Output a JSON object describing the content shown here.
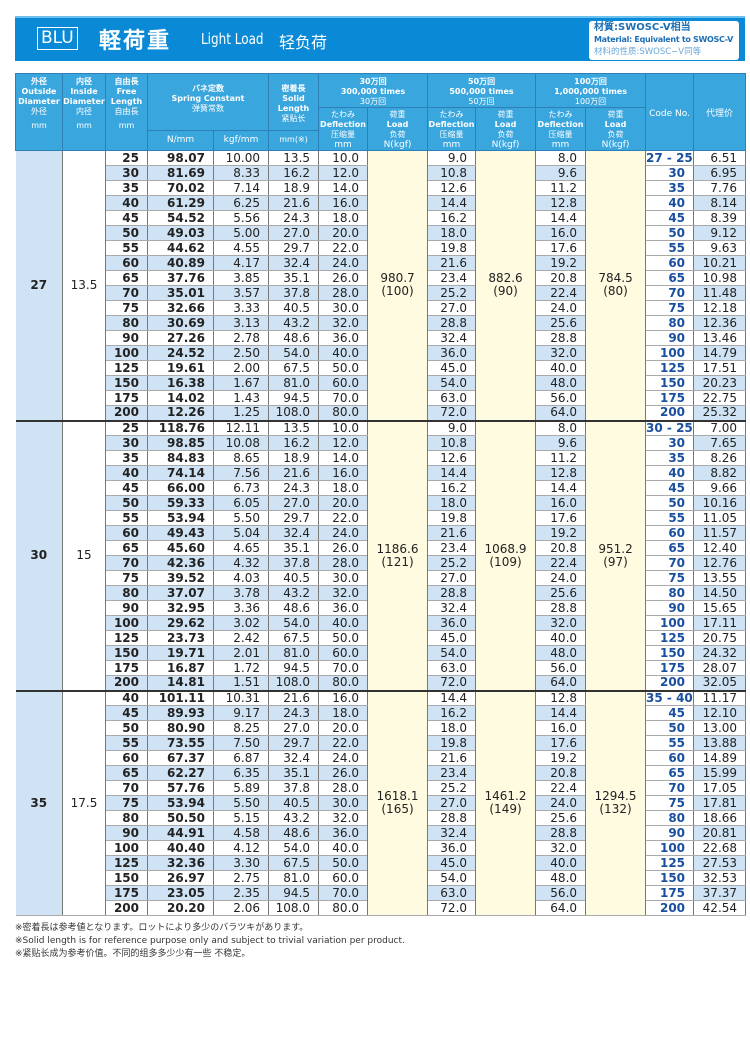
{
  "header": {
    "series": "BLU",
    "title_jp": "軽荷重",
    "title_en": "Light Load",
    "title_cn": "轻负荷",
    "material_jp": "材質:SWOSC-V相当",
    "material_en": "Material: Equivalent to SWOSC-V",
    "material_cn": "材料的性质:SWOSC−V同等"
  },
  "columns": {
    "outside": {
      "jp": "外径",
      "en": "Outside Diameter",
      "cn": "外径",
      "unit": "mm"
    },
    "inside": {
      "jp": "内径",
      "en": "Inside Diameter",
      "cn": "内径",
      "unit": "mm"
    },
    "free": {
      "jp": "自由長",
      "en": "Free Length",
      "cn": "自由長",
      "unit": "mm"
    },
    "spring": {
      "jp": "バネ定数",
      "en": "Spring Constant",
      "cn": "弹簧常数",
      "unit_n": "N/mm",
      "unit_kgf": "kgf/mm"
    },
    "solid": {
      "jp": "密着長",
      "en": "Solid Length",
      "cn": "紧贴长",
      "unit": "mm(※)"
    },
    "life": [
      {
        "jp": "30万回",
        "en": "300,000 times",
        "cn": "30万回"
      },
      {
        "jp": "50万回",
        "en": "500,000 times",
        "cn": "50万回"
      },
      {
        "jp": "100万回",
        "en": "1,000,000 times",
        "cn": "100万回"
      }
    ],
    "deflection": {
      "jp": "たわみ",
      "en": "Deflection",
      "cn": "压缩量",
      "unit": "mm"
    },
    "load": {
      "jp": "荷重",
      "en": "Load",
      "cn": "负荷",
      "unit": "N(kgf)"
    },
    "code": "Code No.",
    "price": "代理价"
  },
  "groups": [
    {
      "outside": "27",
      "inside": "13.5",
      "loads": [
        [
          "980.7",
          "(100)"
        ],
        [
          "882.6",
          "(90)"
        ],
        [
          "784.5",
          "(80)"
        ]
      ],
      "rows": [
        [
          "25",
          "98.07",
          "10.00",
          "13.5",
          "10.0",
          "9.0",
          "8.0",
          "27 - 25",
          "6.51"
        ],
        [
          "30",
          "81.69",
          "8.33",
          "16.2",
          "12.0",
          "10.8",
          "9.6",
          "30",
          "6.95"
        ],
        [
          "35",
          "70.02",
          "7.14",
          "18.9",
          "14.0",
          "12.6",
          "11.2",
          "35",
          "7.76"
        ],
        [
          "40",
          "61.29",
          "6.25",
          "21.6",
          "16.0",
          "14.4",
          "12.8",
          "40",
          "8.14"
        ],
        [
          "45",
          "54.52",
          "5.56",
          "24.3",
          "18.0",
          "16.2",
          "14.4",
          "45",
          "8.39"
        ],
        [
          "50",
          "49.03",
          "5.00",
          "27.0",
          "20.0",
          "18.0",
          "16.0",
          "50",
          "9.12"
        ],
        [
          "55",
          "44.62",
          "4.55",
          "29.7",
          "22.0",
          "19.8",
          "17.6",
          "55",
          "9.63"
        ],
        [
          "60",
          "40.89",
          "4.17",
          "32.4",
          "24.0",
          "21.6",
          "19.2",
          "60",
          "10.21"
        ],
        [
          "65",
          "37.76",
          "3.85",
          "35.1",
          "26.0",
          "23.4",
          "20.8",
          "65",
          "10.98"
        ],
        [
          "70",
          "35.01",
          "3.57",
          "37.8",
          "28.0",
          "25.2",
          "22.4",
          "70",
          "11.48"
        ],
        [
          "75",
          "32.66",
          "3.33",
          "40.5",
          "30.0",
          "27.0",
          "24.0",
          "75",
          "12.18"
        ],
        [
          "80",
          "30.69",
          "3.13",
          "43.2",
          "32.0",
          "28.8",
          "25.6",
          "80",
          "12.36"
        ],
        [
          "90",
          "27.26",
          "2.78",
          "48.6",
          "36.0",
          "32.4",
          "28.8",
          "90",
          "13.46"
        ],
        [
          "100",
          "24.52",
          "2.50",
          "54.0",
          "40.0",
          "36.0",
          "32.0",
          "100",
          "14.79"
        ],
        [
          "125",
          "19.61",
          "2.00",
          "67.5",
          "50.0",
          "45.0",
          "40.0",
          "125",
          "17.51"
        ],
        [
          "150",
          "16.38",
          "1.67",
          "81.0",
          "60.0",
          "54.0",
          "48.0",
          "150",
          "20.23"
        ],
        [
          "175",
          "14.02",
          "1.43",
          "94.5",
          "70.0",
          "63.0",
          "56.0",
          "175",
          "22.75"
        ],
        [
          "200",
          "12.26",
          "1.25",
          "108.0",
          "80.0",
          "72.0",
          "64.0",
          "200",
          "25.32"
        ]
      ]
    },
    {
      "outside": "30",
      "inside": "15",
      "loads": [
        [
          "1186.6",
          "(121)"
        ],
        [
          "1068.9",
          "(109)"
        ],
        [
          "951.2",
          "(97)"
        ]
      ],
      "rows": [
        [
          "25",
          "118.76",
          "12.11",
          "13.5",
          "10.0",
          "9.0",
          "8.0",
          "30 - 25",
          "7.00"
        ],
        [
          "30",
          "98.85",
          "10.08",
          "16.2",
          "12.0",
          "10.8",
          "9.6",
          "30",
          "7.65"
        ],
        [
          "35",
          "84.83",
          "8.65",
          "18.9",
          "14.0",
          "12.6",
          "11.2",
          "35",
          "8.26"
        ],
        [
          "40",
          "74.14",
          "7.56",
          "21.6",
          "16.0",
          "14.4",
          "12.8",
          "40",
          "8.82"
        ],
        [
          "45",
          "66.00",
          "6.73",
          "24.3",
          "18.0",
          "16.2",
          "14.4",
          "45",
          "9.66"
        ],
        [
          "50",
          "59.33",
          "6.05",
          "27.0",
          "20.0",
          "18.0",
          "16.0",
          "50",
          "10.16"
        ],
        [
          "55",
          "53.94",
          "5.50",
          "29.7",
          "22.0",
          "19.8",
          "17.6",
          "55",
          "11.05"
        ],
        [
          "60",
          "49.43",
          "5.04",
          "32.4",
          "24.0",
          "21.6",
          "19.2",
          "60",
          "11.57"
        ],
        [
          "65",
          "45.60",
          "4.65",
          "35.1",
          "26.0",
          "23.4",
          "20.8",
          "65",
          "12.40"
        ],
        [
          "70",
          "42.36",
          "4.32",
          "37.8",
          "28.0",
          "25.2",
          "22.4",
          "70",
          "12.76"
        ],
        [
          "75",
          "39.52",
          "4.03",
          "40.5",
          "30.0",
          "27.0",
          "24.0",
          "75",
          "13.55"
        ],
        [
          "80",
          "37.07",
          "3.78",
          "43.2",
          "32.0",
          "28.8",
          "25.6",
          "80",
          "14.50"
        ],
        [
          "90",
          "32.95",
          "3.36",
          "48.6",
          "36.0",
          "32.4",
          "28.8",
          "90",
          "15.65"
        ],
        [
          "100",
          "29.62",
          "3.02",
          "54.0",
          "40.0",
          "36.0",
          "32.0",
          "100",
          "17.11"
        ],
        [
          "125",
          "23.73",
          "2.42",
          "67.5",
          "50.0",
          "45.0",
          "40.0",
          "125",
          "20.75"
        ],
        [
          "150",
          "19.71",
          "2.01",
          "81.0",
          "60.0",
          "54.0",
          "48.0",
          "150",
          "24.32"
        ],
        [
          "175",
          "16.87",
          "1.72",
          "94.5",
          "70.0",
          "63.0",
          "56.0",
          "175",
          "28.07"
        ],
        [
          "200",
          "14.81",
          "1.51",
          "108.0",
          "80.0",
          "72.0",
          "64.0",
          "200",
          "32.05"
        ]
      ]
    },
    {
      "outside": "35",
      "inside": "17.5",
      "loads": [
        [
          "1618.1",
          "(165)"
        ],
        [
          "1461.2",
          "(149)"
        ],
        [
          "1294.5",
          "(132)"
        ]
      ],
      "rows": [
        [
          "40",
          "101.11",
          "10.31",
          "21.6",
          "16.0",
          "14.4",
          "12.8",
          "35 - 40",
          "11.17"
        ],
        [
          "45",
          "89.93",
          "9.17",
          "24.3",
          "18.0",
          "16.2",
          "14.4",
          "45",
          "12.10"
        ],
        [
          "50",
          "80.90",
          "8.25",
          "27.0",
          "20.0",
          "18.0",
          "16.0",
          "50",
          "13.00"
        ],
        [
          "55",
          "73.55",
          "7.50",
          "29.7",
          "22.0",
          "19.8",
          "17.6",
          "55",
          "13.88"
        ],
        [
          "60",
          "67.37",
          "6.87",
          "32.4",
          "24.0",
          "21.6",
          "19.2",
          "60",
          "14.89"
        ],
        [
          "65",
          "62.27",
          "6.35",
          "35.1",
          "26.0",
          "23.4",
          "20.8",
          "65",
          "15.99"
        ],
        [
          "70",
          "57.76",
          "5.89",
          "37.8",
          "28.0",
          "25.2",
          "22.4",
          "70",
          "17.05"
        ],
        [
          "75",
          "53.94",
          "5.50",
          "40.5",
          "30.0",
          "27.0",
          "24.0",
          "75",
          "17.81"
        ],
        [
          "80",
          "50.50",
          "5.15",
          "43.2",
          "32.0",
          "28.8",
          "25.6",
          "80",
          "18.66"
        ],
        [
          "90",
          "44.91",
          "4.58",
          "48.6",
          "36.0",
          "32.4",
          "28.8",
          "90",
          "20.81"
        ],
        [
          "100",
          "40.40",
          "4.12",
          "54.0",
          "40.0",
          "36.0",
          "32.0",
          "100",
          "22.68"
        ],
        [
          "125",
          "32.36",
          "3.30",
          "67.5",
          "50.0",
          "45.0",
          "40.0",
          "125",
          "27.53"
        ],
        [
          "150",
          "26.97",
          "2.75",
          "81.0",
          "60.0",
          "54.0",
          "48.0",
          "150",
          "32.53"
        ],
        [
          "175",
          "23.05",
          "2.35",
          "94.5",
          "70.0",
          "63.0",
          "56.0",
          "175",
          "37.37"
        ],
        [
          "200",
          "20.20",
          "2.06",
          "108.0",
          "80.0",
          "72.0",
          "64.0",
          "200",
          "42.54"
        ]
      ]
    }
  ],
  "footnotes": [
    "※密着長は参考値となります。ロットにより多少のバラツキがあります。",
    "※Solid length is for reference purpose only and subject to trivial variation per product.",
    "※紧贴长成为参考价值。不同的组多多少少有一些 不稳定。"
  ],
  "colors": {
    "brand": "#0a8ad6",
    "header": "#3aa6de",
    "stripe": "#cfe3f5",
    "load_bg": "#fffbe0",
    "code": "#1a4fa0"
  }
}
